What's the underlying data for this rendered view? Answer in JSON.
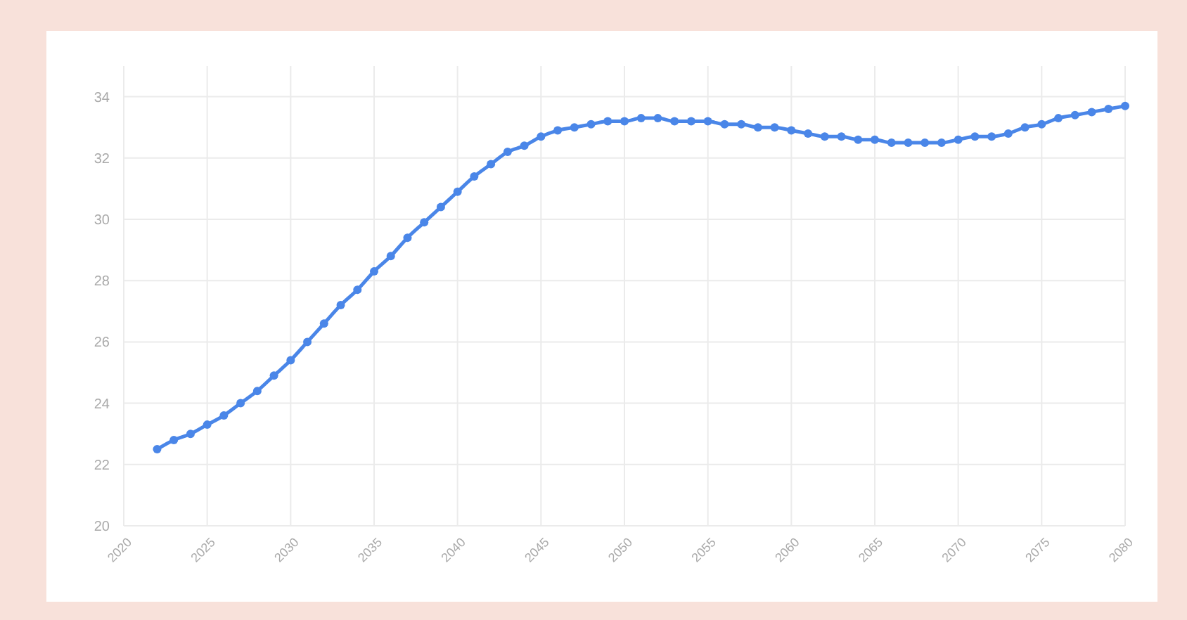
{
  "chart_data": {
    "type": "line",
    "x": [
      2022,
      2023,
      2024,
      2025,
      2026,
      2027,
      2028,
      2029,
      2030,
      2031,
      2032,
      2033,
      2034,
      2035,
      2036,
      2037,
      2038,
      2039,
      2040,
      2041,
      2042,
      2043,
      2044,
      2045,
      2046,
      2047,
      2048,
      2049,
      2050,
      2051,
      2052,
      2053,
      2054,
      2055,
      2056,
      2057,
      2058,
      2059,
      2060,
      2061,
      2062,
      2063,
      2064,
      2065,
      2066,
      2067,
      2068,
      2069,
      2070,
      2071,
      2072,
      2073,
      2074,
      2075,
      2076,
      2077,
      2078,
      2079,
      2080
    ],
    "series": [
      {
        "color": "#4a86e8",
        "values": [
          22.5,
          22.8,
          23.0,
          23.3,
          23.6,
          24.0,
          24.4,
          24.9,
          25.4,
          26.0,
          26.6,
          27.2,
          27.7,
          28.3,
          28.8,
          29.4,
          29.9,
          30.4,
          30.9,
          31.4,
          31.8,
          32.2,
          32.4,
          32.7,
          32.9,
          33.0,
          33.1,
          33.2,
          33.2,
          33.3,
          33.3,
          33.2,
          33.2,
          33.2,
          33.1,
          33.1,
          33.0,
          33.0,
          32.9,
          32.8,
          32.7,
          32.7,
          32.6,
          32.6,
          32.5,
          32.5,
          32.5,
          32.5,
          32.6,
          32.7,
          32.7,
          32.8,
          33.0,
          33.1,
          33.3,
          33.4,
          33.5,
          33.6,
          33.7
        ]
      }
    ],
    "xlim": [
      2020,
      2080
    ],
    "xticks": [
      2020,
      2025,
      2030,
      2035,
      2040,
      2045,
      2050,
      2055,
      2060,
      2065,
      2070,
      2075,
      2080
    ],
    "ylim": [
      20,
      35
    ],
    "yticks": [
      20,
      22,
      24,
      26,
      28,
      30,
      32,
      34
    ],
    "grid": true,
    "marker": "circle",
    "line_style": "solid"
  }
}
